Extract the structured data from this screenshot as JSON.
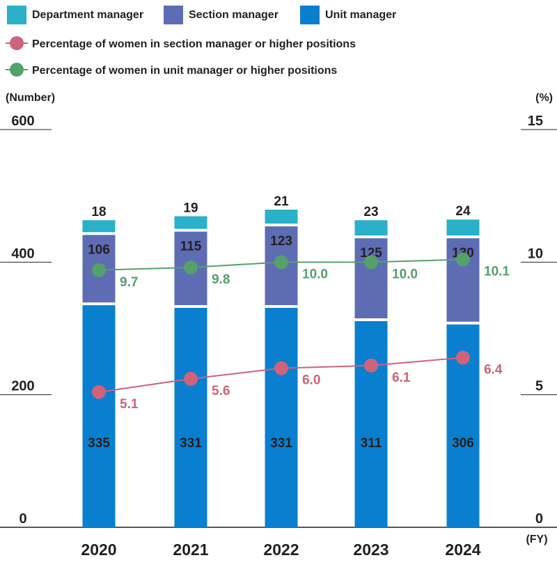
{
  "chart_data": {
    "type": "bar",
    "stacked": true,
    "categories": [
      "2020",
      "2021",
      "2022",
      "2023",
      "2024"
    ],
    "series": [
      {
        "name": "Unit manager",
        "values": [
          335,
          331,
          331,
          311,
          306
        ],
        "color": "#0a7fcf"
      },
      {
        "name": "Section manager",
        "values": [
          106,
          115,
          123,
          125,
          130
        ],
        "color": "#5e6cb4"
      },
      {
        "name": "Department manager",
        "values": [
          18,
          19,
          21,
          23,
          24
        ],
        "color": "#2ab0c9"
      }
    ],
    "lines": [
      {
        "name": "Percentage of women in section manager or higher positions",
        "values": [
          5.1,
          5.6,
          6.0,
          6.1,
          6.4
        ],
        "labels": [
          "5.1",
          "5.6",
          "6.0",
          "6.1",
          "6.4"
        ],
        "color": "#cf6379",
        "axis": "right"
      },
      {
        "name": "Percentage of women in unit manager or higher positions",
        "values": [
          9.7,
          9.8,
          10.0,
          10.0,
          10.1
        ],
        "labels": [
          "9.7",
          "9.8",
          "10.0",
          "10.0",
          "10.1"
        ],
        "color": "#55a06b",
        "axis": "right"
      }
    ],
    "legend_order": [
      "Department manager",
      "Section manager",
      "Unit manager"
    ],
    "left_axis": {
      "label": "(Number)",
      "ticks": [
        0,
        200,
        400,
        600
      ],
      "range": [
        0,
        600
      ]
    },
    "right_axis": {
      "label": "(%)",
      "ticks": [
        0,
        5,
        10,
        15
      ],
      "range": [
        0,
        15
      ]
    },
    "xlabel": "(FY)",
    "legend_position": "top-left"
  }
}
